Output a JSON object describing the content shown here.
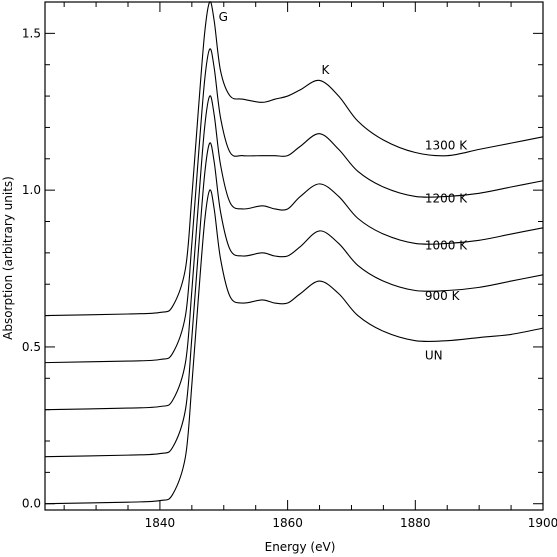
{
  "chart_data": {
    "type": "line",
    "title": "",
    "xlabel": "Energy (eV)",
    "ylabel": "Absorption (arbitrary units)",
    "xlim": [
      1822,
      1900
    ],
    "ylim": [
      -0.02,
      1.6
    ],
    "xticks": [
      1840,
      1860,
      1880,
      1900
    ],
    "xtick_labels": [
      "1840",
      "1860",
      "1880",
      "1900"
    ],
    "yticks": [
      0.0,
      0.5,
      1.0,
      1.5
    ],
    "ytick_labels": [
      "0.0",
      "0.5",
      "1.0",
      "1.5"
    ],
    "grid": false,
    "series": [
      {
        "label": "UN",
        "x": [
          1822,
          1835,
          1840,
          1842,
          1844,
          1845,
          1846,
          1847,
          1847.8,
          1848.5,
          1849.5,
          1851,
          1853,
          1856,
          1858,
          1860,
          1862,
          1865,
          1868,
          1871,
          1875,
          1880,
          1885,
          1890,
          1895,
          1900
        ],
        "y": [
          0.0,
          0.005,
          0.01,
          0.03,
          0.15,
          0.38,
          0.65,
          0.9,
          1.0,
          0.94,
          0.78,
          0.66,
          0.64,
          0.65,
          0.64,
          0.64,
          0.67,
          0.71,
          0.67,
          0.6,
          0.55,
          0.52,
          0.52,
          0.53,
          0.54,
          0.56
        ]
      },
      {
        "label": "900 K",
        "x": [
          1822,
          1835,
          1840,
          1842,
          1844,
          1845,
          1846,
          1847,
          1847.8,
          1848.5,
          1849.5,
          1851,
          1853,
          1856,
          1858,
          1860,
          1862,
          1865,
          1868,
          1871,
          1875,
          1880,
          1885,
          1890,
          1895,
          1900
        ],
        "y": [
          0.15,
          0.155,
          0.16,
          0.18,
          0.3,
          0.53,
          0.8,
          1.05,
          1.15,
          1.09,
          0.93,
          0.81,
          0.79,
          0.8,
          0.79,
          0.79,
          0.82,
          0.87,
          0.83,
          0.76,
          0.71,
          0.68,
          0.68,
          0.69,
          0.71,
          0.73
        ]
      },
      {
        "label": "1000 K",
        "x": [
          1822,
          1835,
          1840,
          1842,
          1844,
          1845,
          1846,
          1847,
          1847.8,
          1848.5,
          1849.5,
          1851,
          1853,
          1856,
          1858,
          1860,
          1862,
          1865,
          1868,
          1871,
          1875,
          1880,
          1885,
          1890,
          1895,
          1900
        ],
        "y": [
          0.3,
          0.305,
          0.31,
          0.33,
          0.45,
          0.68,
          0.95,
          1.2,
          1.3,
          1.24,
          1.08,
          0.96,
          0.94,
          0.95,
          0.94,
          0.94,
          0.98,
          1.02,
          0.98,
          0.91,
          0.86,
          0.83,
          0.83,
          0.84,
          0.86,
          0.88
        ]
      },
      {
        "label": "1200 K",
        "x": [
          1822,
          1835,
          1840,
          1842,
          1844,
          1845,
          1846,
          1847,
          1847.8,
          1848.5,
          1849.5,
          1851,
          1853,
          1856,
          1858,
          1860,
          1862,
          1865,
          1868,
          1871,
          1875,
          1880,
          1885,
          1890,
          1895,
          1900
        ],
        "y": [
          0.45,
          0.455,
          0.46,
          0.48,
          0.6,
          0.83,
          1.1,
          1.35,
          1.45,
          1.39,
          1.23,
          1.12,
          1.11,
          1.11,
          1.11,
          1.11,
          1.14,
          1.18,
          1.13,
          1.06,
          1.01,
          0.98,
          0.98,
          0.99,
          1.01,
          1.03
        ]
      },
      {
        "label": "1300 K",
        "x": [
          1822,
          1835,
          1840,
          1842,
          1844,
          1845,
          1846,
          1847,
          1847.8,
          1848.5,
          1849.5,
          1851,
          1853,
          1856,
          1858,
          1860,
          1862,
          1865,
          1868,
          1871,
          1875,
          1880,
          1885,
          1890,
          1895,
          1900
        ],
        "y": [
          0.6,
          0.605,
          0.61,
          0.63,
          0.75,
          0.98,
          1.25,
          1.5,
          1.6,
          1.54,
          1.38,
          1.3,
          1.29,
          1.28,
          1.29,
          1.3,
          1.32,
          1.35,
          1.3,
          1.22,
          1.16,
          1.12,
          1.11,
          1.13,
          1.15,
          1.17
        ]
      }
    ],
    "annotations": [
      {
        "text": "G",
        "x": 1849.2,
        "y": 1.54
      },
      {
        "text": "K",
        "x": 1865.3,
        "y": 1.37
      },
      {
        "text": "1300 K",
        "x": 1881.5,
        "y": 1.13
      },
      {
        "text": "1200 K",
        "x": 1881.5,
        "y": 0.96
      },
      {
        "text": "1000 K",
        "x": 1881.5,
        "y": 0.81
      },
      {
        "text": "900 K",
        "x": 1881.5,
        "y": 0.65
      },
      {
        "text": "UN",
        "x": 1881.5,
        "y": 0.46
      }
    ]
  }
}
